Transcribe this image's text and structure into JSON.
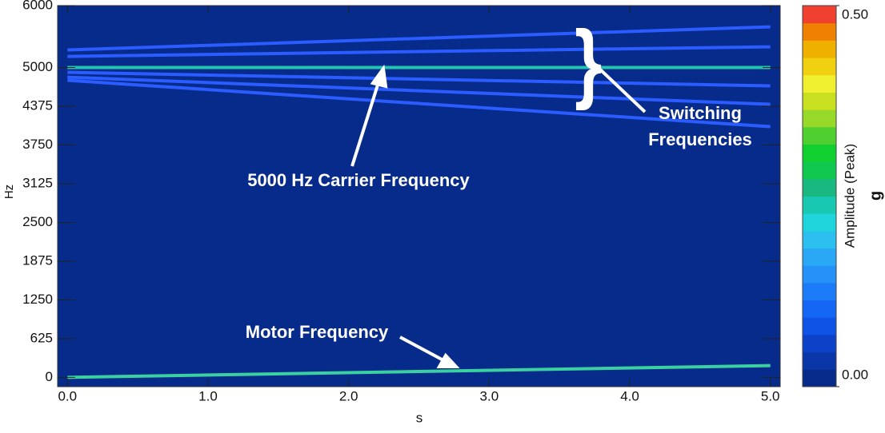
{
  "chart_data": {
    "type": "spectrogram",
    "xlabel": "s",
    "ylabel": "Hz",
    "xlim": [
      -0.07,
      5.07
    ],
    "ylim": [
      -150,
      6000
    ],
    "xticks": [
      {
        "value": 0,
        "label": "0.0"
      },
      {
        "value": 1,
        "label": "1.0"
      },
      {
        "value": 2,
        "label": "2.0"
      },
      {
        "value": 3,
        "label": "3.0"
      },
      {
        "value": 4,
        "label": "4.0"
      },
      {
        "value": 5,
        "label": "5.0"
      }
    ],
    "yticks": [
      0,
      625,
      1250,
      1875,
      2500,
      3125,
      3750,
      4375,
      5000,
      6000
    ],
    "background": "#072b8a",
    "series": [
      {
        "x": [
          0,
          5
        ],
        "values": [
          5284,
          5657
        ],
        "color": "#2a5cff"
      },
      {
        "x": [
          0,
          5
        ],
        "values": [
          5180,
          5335
        ],
        "color": "#2a5cff"
      },
      {
        "x": [
          0,
          5
        ],
        "values": [
          5000,
          5000
        ],
        "color": "#22c4b0"
      },
      {
        "x": [
          0,
          5
        ],
        "values": [
          4923,
          4704
        ],
        "color": "#2a5cff"
      },
      {
        "x": [
          0,
          5
        ],
        "values": [
          4845,
          4407
        ],
        "color": "#2a5cff"
      },
      {
        "x": [
          0,
          5
        ],
        "values": [
          4794,
          4046
        ],
        "color": "#2a5cff"
      },
      {
        "x": [
          0,
          5
        ],
        "values": [
          0,
          190
        ],
        "color": "#3ad0a0"
      }
    ],
    "colorbar": {
      "label": "Amplitude (Peak)",
      "unit": "g",
      "lim": [
        0,
        0.5
      ],
      "ticks": [
        {
          "value": 0,
          "label": "0.00"
        },
        {
          "value": 0.5,
          "label": "0.50"
        }
      ],
      "colors": [
        "#062a8a",
        "#0a36a8",
        "#0c42c8",
        "#0f52e6",
        "#1466f5",
        "#1c7cf7",
        "#2492f8",
        "#2aa8f6",
        "#2cc0f0",
        "#20d4dc",
        "#18c8b0",
        "#18b880",
        "#10c850",
        "#10d030",
        "#50d030",
        "#98d828",
        "#c8e020",
        "#f0f030",
        "#f0d010",
        "#f0b000",
        "#f08000",
        "#f04030"
      ]
    },
    "annotations": [
      {
        "text": "5000 Hz Carrier Frequency"
      },
      {
        "text": "Switching"
      },
      {
        "text": "Frequencies"
      },
      {
        "text": "Motor Frequency"
      }
    ]
  }
}
